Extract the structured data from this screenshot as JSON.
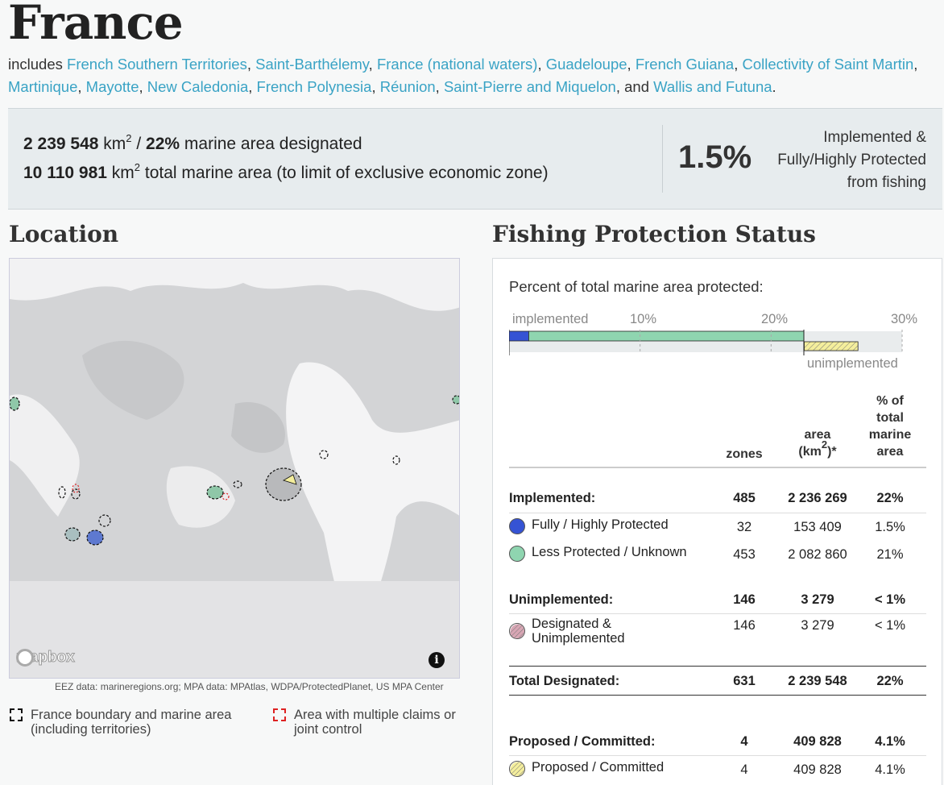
{
  "page": {
    "title": "France",
    "includes_prefix": "includes",
    "territories": [
      "French Southern Territories",
      "Saint-Barthélemy",
      "France (national waters)",
      "Guadeloupe",
      "French Guiana",
      "Collectivity of Saint Martin",
      "Martinique",
      "Mayotte",
      "New Caledonia",
      "French Polynesia",
      "Réunion",
      "Saint-Pierre and Miquelon",
      "Wallis and Futuna"
    ]
  },
  "summary": {
    "designated_km2": "2 239 548",
    "km_unit": "km",
    "designated_pct": "22%",
    "designated_text": "marine area designated",
    "total_km2": "10 110 981",
    "total_text": "total marine area (to limit of exclusive economic zone)",
    "fully_protected_pct": "1.5%",
    "fully_protected_note_1": "Implemented &",
    "fully_protected_note_2": "Fully/Highly Protected",
    "fully_protected_note_3": "from fishing"
  },
  "location": {
    "heading": "Location",
    "attribution": "EEZ data: marineregions.org; MPA data: MPAtlas, WDPA/ProtectedPlanet, US MPA Center",
    "mapbox_label": "mapbox",
    "legend_boundary": "France boundary and marine area (including territories)",
    "legend_claims": "Area with multiple claims or joint control"
  },
  "fishing": {
    "heading": "Fishing Protection Status",
    "percent_heading": "Percent of total marine area protected:",
    "bar_labels": {
      "implemented": "implemented",
      "unimplemented": "unimplemented",
      "ticks": [
        "10%",
        "20%",
        "30%"
      ]
    },
    "bar_values": {
      "fully_highly_pct": 1.5,
      "less_protected_pct": 21,
      "unimplemented_pct": 0.03,
      "proposed_pct": 4.1,
      "max_pct": 30
    },
    "columns": {
      "zones": "zones",
      "area": "area",
      "area_unit": "(km",
      "area_suffix": ")*",
      "pct_1": "% of",
      "pct_2": "total",
      "pct_3": "marine",
      "pct_4": "area"
    },
    "rows": {
      "implemented": {
        "label": "Implemented:",
        "zones": "485",
        "area": "2 236 269",
        "pct": "22%"
      },
      "fully": {
        "label": "Fully / Highly Protected",
        "zones": "32",
        "area": "153 409",
        "pct": "1.5%"
      },
      "less": {
        "label": "Less Protected / Unknown",
        "zones": "453",
        "area": "2 082 860",
        "pct": "21%"
      },
      "unimplemented": {
        "label": "Unimplemented:",
        "zones": "146",
        "area": "3 279",
        "pct": "< 1%"
      },
      "designated_unimpl": {
        "label_1": "Designated &",
        "label_2": "Unimplemented",
        "zones": "146",
        "area": "3 279",
        "pct": "< 1%"
      },
      "total": {
        "label": "Total Designated:",
        "zones": "631",
        "area": "2 239 548",
        "pct": "22%"
      },
      "proposed": {
        "label": "Proposed / Committed:",
        "zones": "4",
        "area": "409 828",
        "pct": "4.1%"
      },
      "proposed_sub": {
        "label": "Proposed / Committed",
        "zones": "4",
        "area": "409 828",
        "pct": "4.1%"
      }
    },
    "colors": {
      "fully": "#3553d4",
      "less": "#8fd5b0",
      "unimplemented": "#d8a6b4",
      "proposed": "#f4ee9c",
      "link": "#3aa3c5"
    }
  }
}
